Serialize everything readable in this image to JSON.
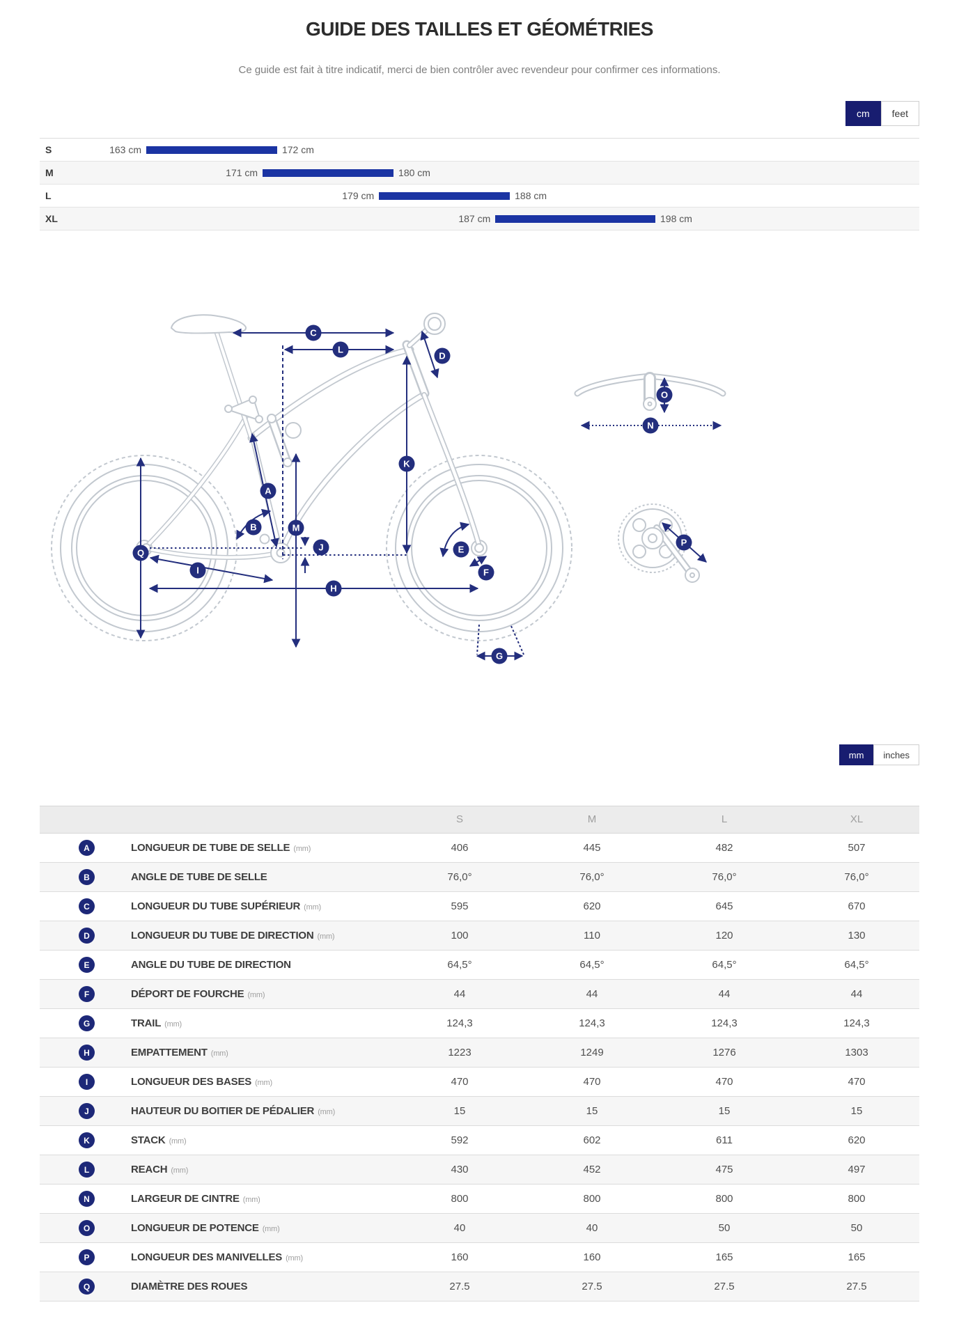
{
  "page": {
    "title": "GUIDE DES TAILLES ET GÉOMÉTRIES",
    "subtitle": "Ce guide est fait à titre indicatif, merci de bien contrôler avec revendeur pour confirmer ces informations."
  },
  "colors": {
    "accent_navy": "#232e7d",
    "bar_blue": "#1b34a3",
    "toggle_active": "#181d70"
  },
  "height_unit_toggle": {
    "active": "cm",
    "inactive": "feet"
  },
  "geometry_unit_toggle": {
    "active": "mm",
    "inactive": "inches"
  },
  "sizes": [
    {
      "label": "S",
      "min": "163 cm",
      "max": "172 cm"
    },
    {
      "label": "M",
      "min": "171 cm",
      "max": "180 cm"
    },
    {
      "label": "L",
      "min": "179 cm",
      "max": "188 cm"
    },
    {
      "label": "XL",
      "min": "187 cm",
      "max": "198 cm"
    }
  ],
  "diagram": {
    "markers": {
      "a": "A",
      "b": "B",
      "c": "C",
      "d": "D",
      "e": "E",
      "f": "F",
      "g": "G",
      "h": "H",
      "i": "I",
      "j": "J",
      "k": "K",
      "l": "L",
      "m": "M",
      "n": "N",
      "o": "O",
      "p": "P",
      "q": "Q"
    }
  },
  "table": {
    "columns": [
      "S",
      "M",
      "L",
      "XL"
    ],
    "rows": [
      {
        "letter": "A",
        "label": "LONGUEUR DE TUBE DE SELLE",
        "unit": "(mm)",
        "values": [
          "406",
          "445",
          "482",
          "507"
        ]
      },
      {
        "letter": "B",
        "label": "ANGLE DE TUBE DE SELLE",
        "unit": "",
        "values": [
          "76,0°",
          "76,0°",
          "76,0°",
          "76,0°"
        ]
      },
      {
        "letter": "C",
        "label": "LONGUEUR DU TUBE SUPÉRIEUR",
        "unit": "(mm)",
        "values": [
          "595",
          "620",
          "645",
          "670"
        ]
      },
      {
        "letter": "D",
        "label": "LONGUEUR DU TUBE DE DIRECTION",
        "unit": "(mm)",
        "values": [
          "100",
          "110",
          "120",
          "130"
        ]
      },
      {
        "letter": "E",
        "label": "ANGLE DU TUBE DE DIRECTION",
        "unit": "",
        "values": [
          "64,5°",
          "64,5°",
          "64,5°",
          "64,5°"
        ]
      },
      {
        "letter": "F",
        "label": "DÉPORT DE FOURCHE",
        "unit": "(mm)",
        "values": [
          "44",
          "44",
          "44",
          "44"
        ]
      },
      {
        "letter": "G",
        "label": "TRAIL",
        "unit": "(mm)",
        "values": [
          "124,3",
          "124,3",
          "124,3",
          "124,3"
        ]
      },
      {
        "letter": "H",
        "label": "EMPATTEMENT",
        "unit": "(mm)",
        "values": [
          "1223",
          "1249",
          "1276",
          "1303"
        ]
      },
      {
        "letter": "I",
        "label": "LONGUEUR DES BASES",
        "unit": "(mm)",
        "values": [
          "470",
          "470",
          "470",
          "470"
        ]
      },
      {
        "letter": "J",
        "label": "HAUTEUR DU BOITIER DE PÉDALIER",
        "unit": "(mm)",
        "values": [
          "15",
          "15",
          "15",
          "15"
        ]
      },
      {
        "letter": "K",
        "label": "STACK",
        "unit": "(mm)",
        "values": [
          "592",
          "602",
          "611",
          "620"
        ]
      },
      {
        "letter": "L",
        "label": "REACH",
        "unit": "(mm)",
        "values": [
          "430",
          "452",
          "475",
          "497"
        ]
      },
      {
        "letter": "N",
        "label": "LARGEUR DE CINTRE",
        "unit": "(mm)",
        "values": [
          "800",
          "800",
          "800",
          "800"
        ]
      },
      {
        "letter": "O",
        "label": "LONGUEUR DE POTENCE",
        "unit": "(mm)",
        "values": [
          "40",
          "40",
          "50",
          "50"
        ]
      },
      {
        "letter": "P",
        "label": "LONGUEUR DES MANIVELLES",
        "unit": "(mm)",
        "values": [
          "160",
          "160",
          "165",
          "165"
        ]
      },
      {
        "letter": "Q",
        "label": "DIAMÈTRE DES ROUES",
        "unit": "",
        "values": [
          "27.5",
          "27.5",
          "27.5",
          "27.5"
        ]
      }
    ]
  }
}
